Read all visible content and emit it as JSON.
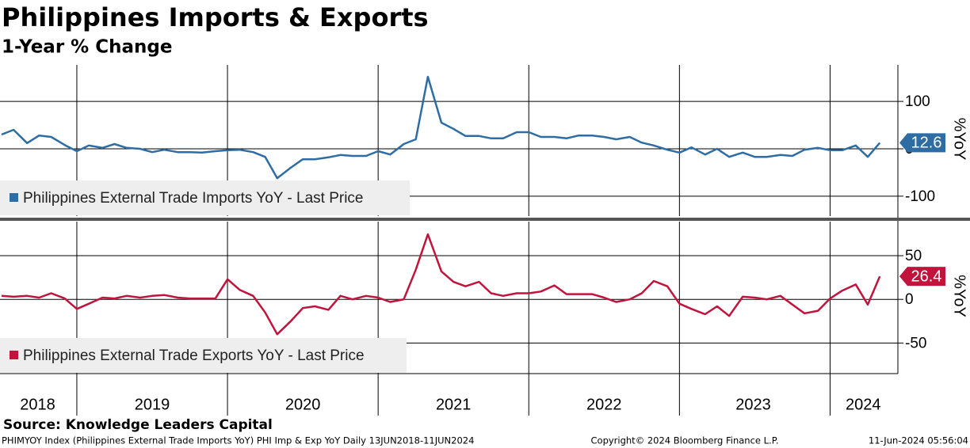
{
  "title": "Philippines Imports & Exports",
  "subtitle": "1-Year % Change",
  "source": "Source: Knowledge Leaders Capital",
  "footer": {
    "left": "PHIMYOY Index (Philippines External Trade Imports YoY) PHI Imp & Exp YoY  Daily 13JUN2018-11JUN2024",
    "center": "Copyright© 2024 Bloomberg Finance L.P.",
    "right": "11-Jun-2024 05:56:04"
  },
  "chart_data": [
    {
      "type": "line",
      "y_axis_label": "%YoY",
      "x": [
        2018.5,
        2018.58,
        2018.67,
        2018.75,
        2018.83,
        2018.92,
        2019,
        2019.08,
        2019.17,
        2019.25,
        2019.33,
        2019.42,
        2019.5,
        2019.58,
        2019.67,
        2019.75,
        2019.83,
        2019.92,
        2020,
        2020.08,
        2020.17,
        2020.25,
        2020.33,
        2020.42,
        2020.5,
        2020.58,
        2020.67,
        2020.75,
        2020.83,
        2020.92,
        2021,
        2021.08,
        2021.17,
        2021.25,
        2021.33,
        2021.42,
        2021.5,
        2021.58,
        2021.67,
        2021.75,
        2021.83,
        2021.92,
        2022,
        2022.08,
        2022.17,
        2022.25,
        2022.33,
        2022.42,
        2022.5,
        2022.58,
        2022.67,
        2022.75,
        2022.83,
        2022.92,
        2023,
        2023.08,
        2023.17,
        2023.25,
        2023.33,
        2023.42,
        2023.5,
        2023.58,
        2023.67,
        2023.75,
        2023.83,
        2023.92,
        2024,
        2024.08,
        2024.17,
        2024.25,
        2024.33
      ],
      "series": [
        {
          "name": "Philippines External Trade Imports YoY - Last Price",
          "color": "#2e6da4",
          "values": [
            30,
            40,
            12,
            28,
            25,
            8,
            -5,
            7,
            2,
            10,
            2,
            0,
            -7,
            -2,
            -7,
            -7,
            -8,
            -5,
            -3,
            -2,
            -7,
            -17,
            -62,
            -40,
            -22,
            -22,
            -18,
            -13,
            -15,
            -15,
            -5,
            -12,
            10,
            20,
            152,
            55,
            42,
            27,
            27,
            22,
            22,
            35,
            35,
            25,
            25,
            22,
            28,
            28,
            25,
            20,
            25,
            13,
            7,
            -2,
            -8,
            3,
            -12,
            0,
            -17,
            -8,
            -17,
            -17,
            -13,
            -15,
            -2,
            2,
            -3,
            -3,
            7,
            -17,
            12.6
          ]
        }
      ],
      "xlim": [
        2018.49,
        2024.45
      ],
      "xticks": [
        2019,
        2020,
        2021,
        2022,
        2023,
        2024
      ],
      "ylim": [
        -142,
        177
      ],
      "yticks": [
        -100,
        0,
        100
      ],
      "grid": true
    },
    {
      "type": "line",
      "y_axis_label": "%YoY",
      "x": [
        2018.5,
        2018.58,
        2018.67,
        2018.75,
        2018.83,
        2018.92,
        2019,
        2019.08,
        2019.17,
        2019.25,
        2019.33,
        2019.42,
        2019.5,
        2019.58,
        2019.67,
        2019.75,
        2019.83,
        2019.92,
        2020,
        2020.08,
        2020.17,
        2020.25,
        2020.33,
        2020.42,
        2020.5,
        2020.58,
        2020.67,
        2020.75,
        2020.83,
        2020.92,
        2021,
        2021.08,
        2021.17,
        2021.25,
        2021.33,
        2021.42,
        2021.5,
        2021.58,
        2021.67,
        2021.75,
        2021.83,
        2021.92,
        2022,
        2022.08,
        2022.17,
        2022.25,
        2022.33,
        2022.42,
        2022.5,
        2022.58,
        2022.67,
        2022.75,
        2022.83,
        2022.92,
        2023,
        2023.08,
        2023.17,
        2023.25,
        2023.33,
        2023.42,
        2023.5,
        2023.58,
        2023.67,
        2023.75,
        2023.83,
        2023.92,
        2024,
        2024.08,
        2024.17,
        2024.25,
        2024.33
      ],
      "series": [
        {
          "name": "Philippines External Trade Exports YoY - Last Price",
          "color": "#c0143c",
          "values": [
            4,
            3,
            4,
            2,
            7,
            1,
            -11,
            -5,
            2,
            1,
            4,
            2,
            4,
            5,
            2,
            1,
            1,
            1,
            23,
            11,
            4,
            -15,
            -40,
            -25,
            -10,
            -8,
            -12,
            4,
            0,
            4,
            2,
            -3,
            0,
            34,
            74.5,
            32,
            20,
            15,
            20,
            7,
            4,
            7,
            7,
            9,
            16,
            6,
            6,
            6,
            2,
            -3,
            0,
            7,
            21,
            15,
            -5,
            -11,
            -17,
            -8,
            -19,
            3,
            2,
            0,
            4,
            -6,
            -16,
            -13,
            1,
            10,
            17,
            -6,
            26.4
          ]
        }
      ],
      "xlim": [
        2018.49,
        2024.45
      ],
      "xticks": [
        2019,
        2020,
        2021,
        2022,
        2023,
        2024
      ],
      "xlabels": [
        {
          "value": 2018.74,
          "label": "2018"
        },
        {
          "value": 2019.5,
          "label": "2019"
        },
        {
          "value": 2020.5,
          "label": "2020"
        },
        {
          "value": 2021.5,
          "label": "2021"
        },
        {
          "value": 2022.5,
          "label": "2022"
        },
        {
          "value": 2023.49,
          "label": "2023"
        },
        {
          "value": 2024.22,
          "label": "2024"
        }
      ],
      "ylim": [
        -85,
        89
      ],
      "yticks": [
        -50,
        0,
        50
      ],
      "grid": true
    }
  ]
}
